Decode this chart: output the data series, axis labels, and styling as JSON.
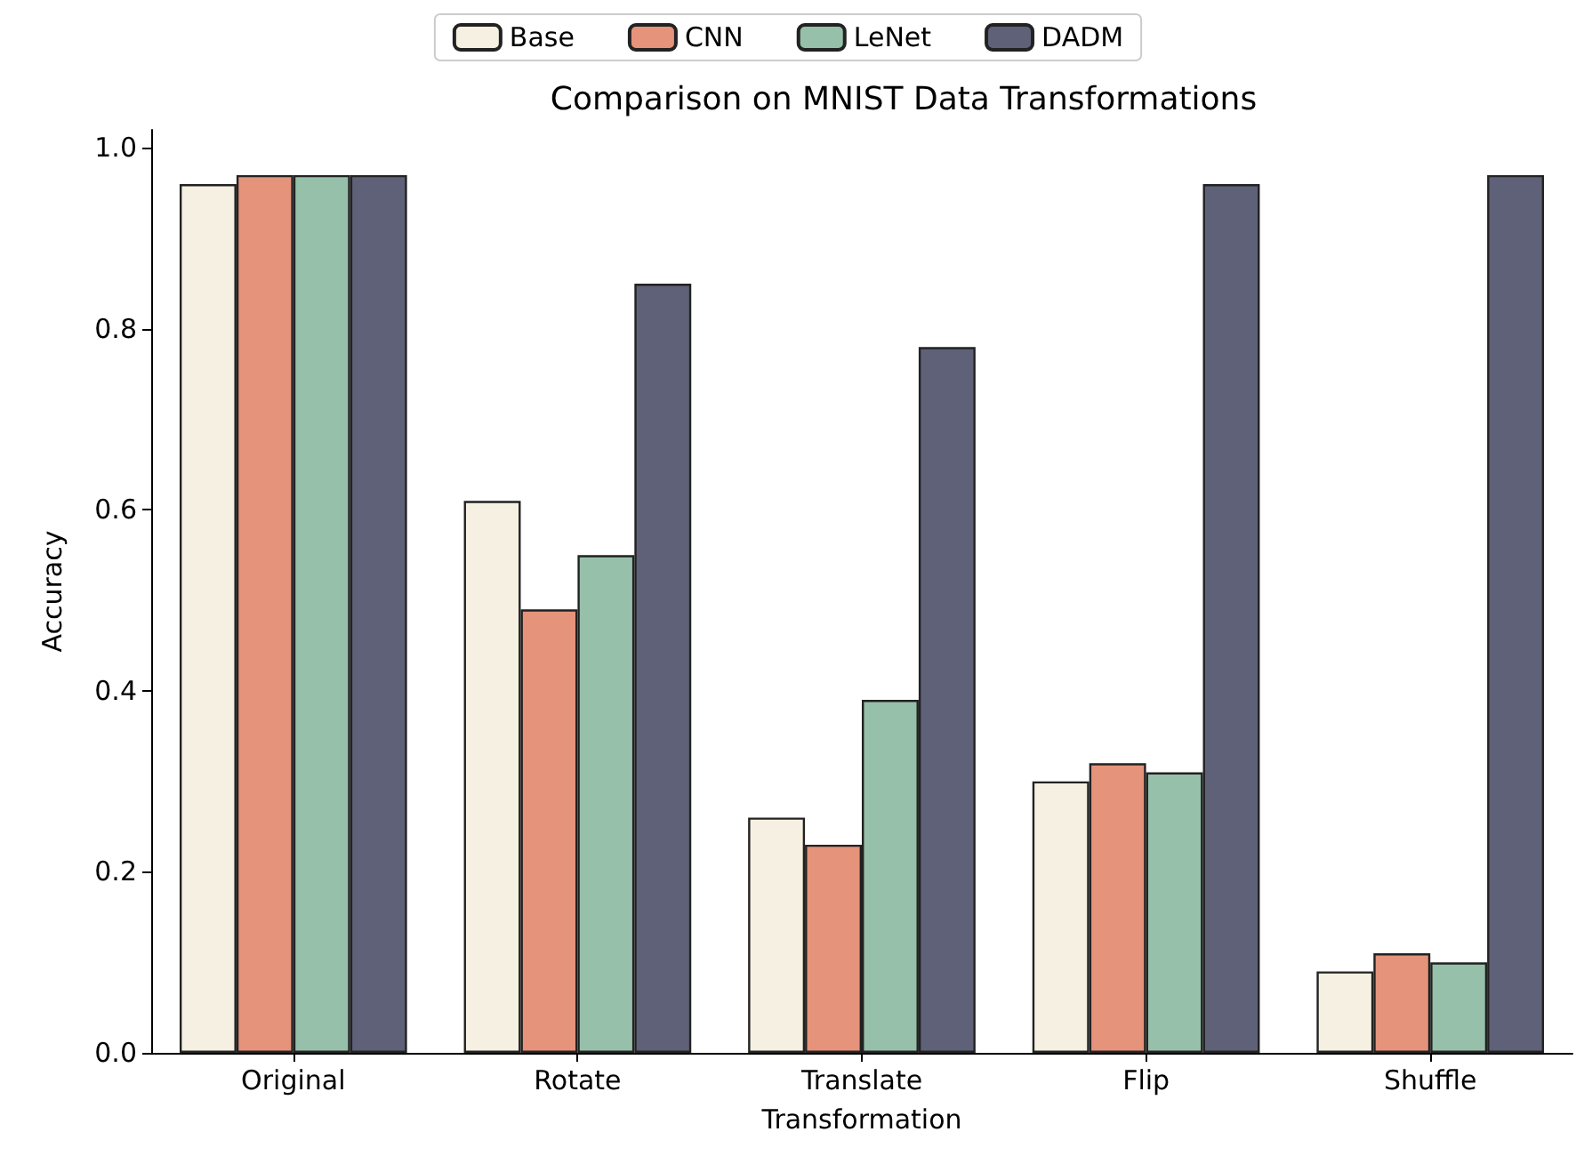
{
  "chart_data": {
    "type": "bar",
    "title": "Comparison on MNIST Data Transformations",
    "xlabel": "Transformation",
    "ylabel": "Accuracy",
    "categories": [
      "Original",
      "Rotate",
      "Translate",
      "Flip",
      "Shuffle"
    ],
    "series": [
      {
        "name": "Base",
        "color": "#f5f0e1",
        "values": [
          0.96,
          0.61,
          0.26,
          0.3,
          0.09
        ]
      },
      {
        "name": "CNN",
        "color": "#e5937a",
        "values": [
          0.97,
          0.49,
          0.23,
          0.32,
          0.11
        ]
      },
      {
        "name": "LeNet",
        "color": "#96c0aa",
        "values": [
          0.97,
          0.55,
          0.39,
          0.31,
          0.1
        ]
      },
      {
        "name": "DADM",
        "color": "#5f6178",
        "values": [
          0.97,
          0.85,
          0.78,
          0.96,
          0.97
        ]
      }
    ],
    "ylim": [
      0,
      1.02
    ],
    "yticks": [
      {
        "value": 0,
        "label": "0.0"
      },
      {
        "value": 0.2,
        "label": "0.2"
      },
      {
        "value": 0.4,
        "label": "0.4"
      },
      {
        "value": 0.6,
        "label": "0.6"
      },
      {
        "value": 0.8,
        "label": "0.8"
      },
      {
        "value": 1,
        "label": "1.0"
      }
    ],
    "grid": false,
    "legend": "top"
  }
}
